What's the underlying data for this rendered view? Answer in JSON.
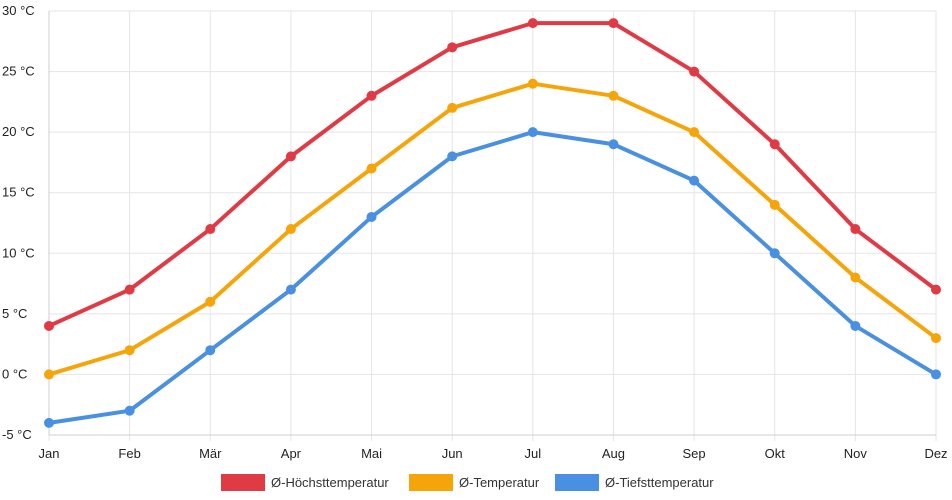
{
  "chart_data": {
    "type": "line",
    "title": "",
    "xlabel": "",
    "ylabel": "",
    "categories": [
      "Jan",
      "Feb",
      "Mär",
      "Apr",
      "Mai",
      "Jun",
      "Jul",
      "Aug",
      "Sep",
      "Okt",
      "Nov",
      "Dez"
    ],
    "y_unit": " °C",
    "ylim": [
      -5,
      30
    ],
    "y_ticks": [
      30,
      25,
      20,
      15,
      10,
      5,
      0,
      -5
    ],
    "y_tick_labels": [
      "30 °C",
      "25 °C",
      "20 °C",
      "15 °C",
      "10 °C",
      "5 °C",
      "0 °C",
      "-5 °C"
    ],
    "grid": true,
    "legend_position": "bottom",
    "series": [
      {
        "name": "Ø-Höchsttemperatur",
        "color": "#e03a45",
        "values": [
          4,
          7,
          12,
          18,
          23,
          27,
          29,
          29,
          25,
          19,
          12,
          7
        ]
      },
      {
        "name": "Ø-Temperatur",
        "color": "#f5a50a",
        "values": [
          0,
          2,
          6,
          12,
          17,
          22,
          24,
          23,
          20,
          14,
          8,
          3
        ]
      },
      {
        "name": "Ø-Tiefsttemperatur",
        "color": "#4a90e2",
        "values": [
          -4,
          -3,
          2,
          7,
          13,
          18,
          20,
          19,
          16,
          10,
          4,
          0
        ]
      }
    ]
  }
}
